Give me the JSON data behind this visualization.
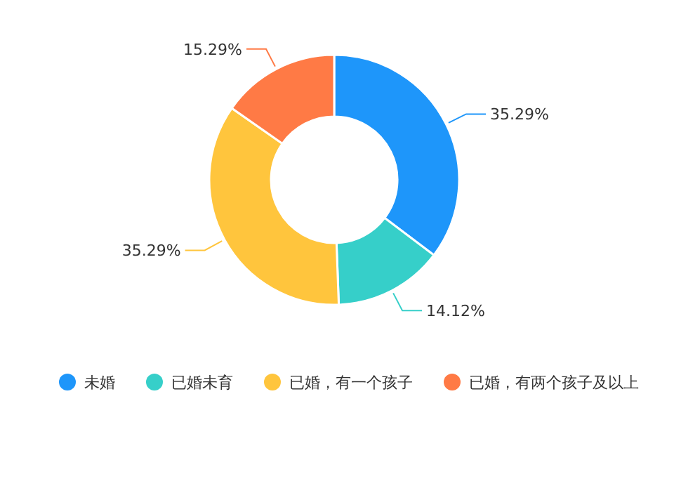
{
  "chart_data": {
    "type": "donut",
    "categories": [
      "未婚",
      "已婚未育",
      "已婚，有一个孩子",
      "已婚，有两个孩子及以上"
    ],
    "values": [
      35.29,
      14.12,
      35.29,
      15.29
    ],
    "value_labels": [
      "35.29%",
      "14.12%",
      "35.29%",
      "15.29%"
    ],
    "colors": [
      "#1e96fa",
      "#36cfc9",
      "#ffc53d",
      "#ff7a45"
    ],
    "legend": "bottom"
  }
}
